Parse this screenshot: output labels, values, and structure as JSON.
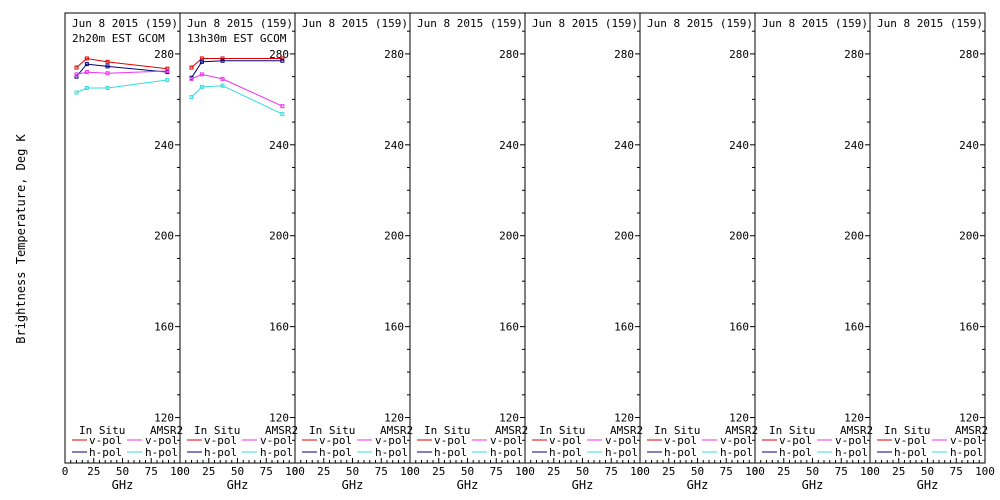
{
  "figure": {
    "ylabel": "Brightness Temperature, Deg K",
    "xlabel": "GHz"
  },
  "legend": {
    "in_situ": "In Situ",
    "amsr2": "AMSR2",
    "vpol": "v-pol",
    "hpol": "h-pol"
  },
  "colors": {
    "insitu_v": "#dd0000",
    "insitu_h": "#000080",
    "amsr2_v": "#ee33ee",
    "amsr2_h": "#33dddd"
  },
  "chart_data": [
    {
      "type": "line",
      "title": "Jun 8 2015 (159)",
      "subtitle": "2h20m EST GCOM",
      "xlim": [
        0,
        100
      ],
      "ylim": [
        100,
        298
      ],
      "xticks": [
        0,
        25,
        50,
        75,
        100
      ],
      "yticks": [
        120,
        160,
        200,
        240,
        280
      ],
      "series": [
        {
          "key": "insitu_v",
          "x": [
            10,
            19,
            37,
            89
          ],
          "y": [
            274,
            278,
            276.5,
            273.5
          ]
        },
        {
          "key": "insitu_h",
          "x": [
            10,
            19,
            37,
            89
          ],
          "y": [
            270,
            275.5,
            274.5,
            272
          ]
        },
        {
          "key": "amsr2_v",
          "x": [
            10,
            19,
            37,
            89
          ],
          "y": [
            271,
            272,
            271.5,
            272.5
          ]
        },
        {
          "key": "amsr2_h",
          "x": [
            10,
            19,
            37,
            89
          ],
          "y": [
            263,
            265,
            265,
            268.5
          ]
        }
      ]
    },
    {
      "type": "line",
      "title": "Jun 8 2015 (159)",
      "subtitle": "13h30m EST GCOM",
      "xlim": [
        0,
        100
      ],
      "ylim": [
        100,
        298
      ],
      "xticks": [
        0,
        25,
        50,
        75,
        100
      ],
      "yticks": [
        120,
        160,
        200,
        240,
        280
      ],
      "series": [
        {
          "key": "insitu_v",
          "x": [
            10,
            19,
            37,
            89
          ],
          "y": [
            274,
            278,
            278,
            278
          ]
        },
        {
          "key": "insitu_h",
          "x": [
            10,
            19,
            37,
            89
          ],
          "y": [
            269.5,
            276.5,
            277,
            277
          ]
        },
        {
          "key": "amsr2_v",
          "x": [
            10,
            19,
            37,
            89
          ],
          "y": [
            269,
            271,
            269,
            257
          ]
        },
        {
          "key": "amsr2_h",
          "x": [
            10,
            19,
            37,
            89
          ],
          "y": [
            261,
            265.5,
            266,
            253.5
          ]
        }
      ]
    },
    {
      "type": "line",
      "title": "Jun 8 2015 (159)",
      "xlim": [
        0,
        100
      ],
      "ylim": [
        100,
        298
      ],
      "xticks": [
        0,
        25,
        50,
        75,
        100
      ],
      "yticks": [
        120,
        160,
        200,
        240,
        280
      ],
      "series": []
    },
    {
      "type": "line",
      "title": "Jun 8 2015 (159)",
      "xlim": [
        0,
        100
      ],
      "ylim": [
        100,
        298
      ],
      "xticks": [
        0,
        25,
        50,
        75,
        100
      ],
      "yticks": [
        120,
        160,
        200,
        240,
        280
      ],
      "series": []
    },
    {
      "type": "line",
      "title": "Jun 8 2015 (159)",
      "xlim": [
        0,
        100
      ],
      "ylim": [
        100,
        298
      ],
      "xticks": [
        0,
        25,
        50,
        75,
        100
      ],
      "yticks": [
        120,
        160,
        200,
        240,
        280
      ],
      "series": []
    },
    {
      "type": "line",
      "title": "Jun 8 2015 (159)",
      "xlim": [
        0,
        100
      ],
      "ylim": [
        100,
        298
      ],
      "xticks": [
        0,
        25,
        50,
        75,
        100
      ],
      "yticks": [
        120,
        160,
        200,
        240,
        280
      ],
      "series": []
    },
    {
      "type": "line",
      "title": "Jun 8 2015 (159)",
      "xlim": [
        0,
        100
      ],
      "ylim": [
        100,
        298
      ],
      "xticks": [
        0,
        25,
        50,
        75,
        100
      ],
      "yticks": [
        120,
        160,
        200,
        240,
        280
      ],
      "series": []
    },
    {
      "type": "line",
      "title": "Jun 8 2015 (159)",
      "xlim": [
        0,
        100
      ],
      "ylim": [
        100,
        298
      ],
      "xticks": [
        0,
        25,
        50,
        75,
        100
      ],
      "yticks": [
        120,
        160,
        200,
        240,
        280
      ],
      "series": []
    }
  ]
}
